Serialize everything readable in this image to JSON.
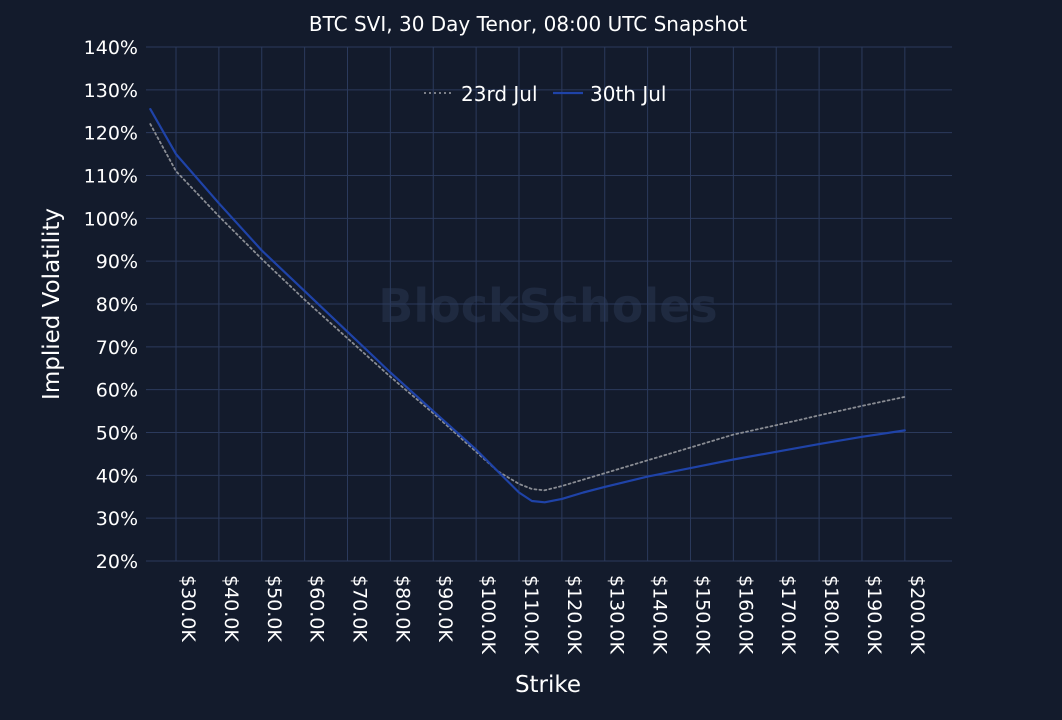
{
  "chart_data": {
    "type": "line",
    "title": "BTC SVI, 30 Day Tenor, 08:00 UTC Snapshot",
    "xlabel": "Strike",
    "ylabel": "Implied Volatility",
    "watermark": "BlockScholes",
    "xlim": [
      23000,
      211000
    ],
    "ylim": [
      20,
      140
    ],
    "x_ticks": [
      30000,
      40000,
      50000,
      60000,
      70000,
      80000,
      90000,
      100000,
      110000,
      120000,
      130000,
      140000,
      150000,
      160000,
      170000,
      180000,
      190000,
      200000
    ],
    "x_tick_labels": [
      "$30.0K",
      "$40.0K",
      "$50.0K",
      "$60.0K",
      "$70.0K",
      "$80.0K",
      "$90.0K",
      "$100.0K",
      "$110.0K",
      "$120.0K",
      "$130.0K",
      "$140.0K",
      "$150.0K",
      "$160.0K",
      "$170.0K",
      "$180.0K",
      "$190.0K",
      "$200.0K"
    ],
    "y_ticks": [
      20,
      30,
      40,
      50,
      60,
      70,
      80,
      90,
      100,
      110,
      120,
      130,
      140
    ],
    "y_tick_labels": [
      "20%",
      "30%",
      "40%",
      "50%",
      "60%",
      "70%",
      "80%",
      "90%",
      "100%",
      "110%",
      "120%",
      "130%",
      "140%"
    ],
    "grid": true,
    "legend_position": "top-center",
    "series": [
      {
        "name": "23rd Jul",
        "style": "dotted",
        "color": "#8a8d94",
        "x": [
          24000,
          30000,
          40000,
          50000,
          60000,
          70000,
          80000,
          90000,
          100000,
          105000,
          110000,
          113000,
          116000,
          120000,
          125000,
          130000,
          140000,
          150000,
          160000,
          170000,
          180000,
          190000,
          200000
        ],
        "y": [
          122,
          111,
          100.5,
          90.5,
          81,
          72,
          63,
          54.5,
          45.5,
          41,
          38,
          36.8,
          36.5,
          37.5,
          39,
          40.5,
          43.5,
          46.5,
          49.5,
          51.7,
          54,
          56.2,
          58.3
        ]
      },
      {
        "name": "30th Jul",
        "style": "solid",
        "color": "#1f43a8",
        "x": [
          24000,
          30000,
          40000,
          50000,
          60000,
          70000,
          80000,
          90000,
          100000,
          105000,
          110000,
          113000,
          116000,
          120000,
          125000,
          130000,
          140000,
          150000,
          160000,
          170000,
          180000,
          190000,
          200000
        ],
        "y": [
          125.5,
          115,
          103.5,
          92.5,
          83,
          73.5,
          64,
          55,
          46,
          41,
          36,
          34,
          33.7,
          34.5,
          36,
          37.3,
          39.7,
          41.7,
          43.7,
          45.5,
          47.3,
          49,
          50.5
        ]
      }
    ]
  }
}
